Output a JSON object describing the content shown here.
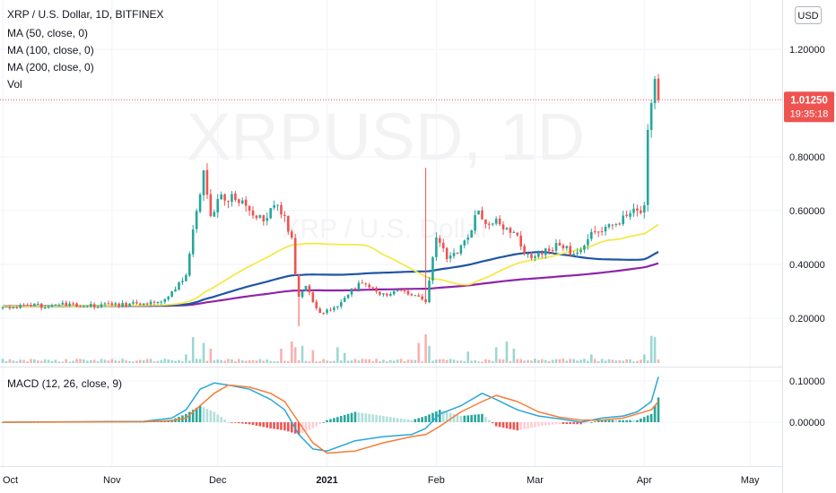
{
  "header": {
    "title": "XRP / U.S. Dollar, 1D, BITFINEX",
    "indicators": [
      "MA (50, close, 0)",
      "MA (100, close, 0)",
      "MA (200, close, 0)",
      "Vol"
    ],
    "currency": "USD",
    "watermark_main": "XRPUSD, 1D",
    "watermark_sub": "XRP / U.S. Dollar"
  },
  "price_tag": {
    "value": "1.01250",
    "time": "19:35:18",
    "color": "#ef5350"
  },
  "macd": {
    "label": "MACD (12, 26, close, 9)"
  },
  "colors": {
    "up": "#26a69a",
    "down": "#ef5350",
    "ma50": "#f5e84a",
    "ma100": "#1f55a5",
    "ma200": "#8e24aa",
    "macd_line": "#2aa7d8",
    "signal_line": "#f57c39",
    "hist_up_strong": "#26a69a",
    "hist_up_weak": "#b2dfdb",
    "hist_down_strong": "#ef5350",
    "hist_down_weak": "#ffcdd2"
  },
  "chart_data": [
    {
      "type": "candlestick",
      "title": "XRP / U.S. Dollar, 1D, BITFINEX",
      "ylim": [
        0.1,
        1.3
      ],
      "yticks": [
        "0.20000",
        "0.40000",
        "0.60000",
        "0.80000",
        "1.00000",
        "1.20000"
      ],
      "x_tick_labels": [
        "Oct",
        "Nov",
        "Dec",
        "2021",
        "Feb",
        "Mar",
        "Apr",
        "May"
      ],
      "anchors": [
        {
          "d": 0,
          "p": 0.24
        },
        {
          "d": 8,
          "p": 0.245
        },
        {
          "d": 16,
          "p": 0.25
        },
        {
          "d": 24,
          "p": 0.245
        },
        {
          "d": 31,
          "p": 0.25
        },
        {
          "d": 38,
          "p": 0.255
        },
        {
          "d": 44,
          "p": 0.26
        },
        {
          "d": 48,
          "p": 0.3
        },
        {
          "d": 52,
          "p": 0.36
        },
        {
          "d": 54,
          "p": 0.53
        },
        {
          "d": 56,
          "p": 0.66
        },
        {
          "d": 57,
          "p": 0.75
        },
        {
          "d": 59,
          "p": 0.58
        },
        {
          "d": 62,
          "p": 0.66
        },
        {
          "d": 66,
          "p": 0.64
        },
        {
          "d": 70,
          "p": 0.6
        },
        {
          "d": 74,
          "p": 0.56
        },
        {
          "d": 77,
          "p": 0.62
        },
        {
          "d": 80,
          "p": 0.58
        },
        {
          "d": 82,
          "p": 0.5
        },
        {
          "d": 83,
          "p": 0.36
        },
        {
          "d": 84,
          "p": 0.28
        },
        {
          "d": 86,
          "p": 0.32
        },
        {
          "d": 88,
          "p": 0.26
        },
        {
          "d": 90,
          "p": 0.22
        },
        {
          "d": 93,
          "p": 0.23
        },
        {
          "d": 96,
          "p": 0.26
        },
        {
          "d": 99,
          "p": 0.31
        },
        {
          "d": 102,
          "p": 0.33
        },
        {
          "d": 106,
          "p": 0.3
        },
        {
          "d": 110,
          "p": 0.29
        },
        {
          "d": 114,
          "p": 0.3
        },
        {
          "d": 118,
          "p": 0.28
        },
        {
          "d": 120,
          "p": 0.26
        },
        {
          "d": 121,
          "p": 0.34
        },
        {
          "d": 123,
          "p": 0.5
        },
        {
          "d": 126,
          "p": 0.42
        },
        {
          "d": 129,
          "p": 0.44
        },
        {
          "d": 132,
          "p": 0.5
        },
        {
          "d": 135,
          "p": 0.6
        },
        {
          "d": 137,
          "p": 0.55
        },
        {
          "d": 140,
          "p": 0.57
        },
        {
          "d": 142,
          "p": 0.53
        },
        {
          "d": 145,
          "p": 0.52
        },
        {
          "d": 148,
          "p": 0.44
        },
        {
          "d": 151,
          "p": 0.43
        },
        {
          "d": 154,
          "p": 0.46
        },
        {
          "d": 158,
          "p": 0.47
        },
        {
          "d": 162,
          "p": 0.44
        },
        {
          "d": 165,
          "p": 0.47
        },
        {
          "d": 168,
          "p": 0.52
        },
        {
          "d": 171,
          "p": 0.54
        },
        {
          "d": 174,
          "p": 0.55
        },
        {
          "d": 177,
          "p": 0.58
        },
        {
          "d": 180,
          "p": 0.6
        },
        {
          "d": 182,
          "p": 0.62
        },
        {
          "d": 183,
          "p": 0.9
        },
        {
          "d": 184,
          "p": 1.0
        },
        {
          "d": 185,
          "p": 1.09
        },
        {
          "d": 186,
          "p": 1.0125
        }
      ],
      "volume_spikes": [
        {
          "d": 52,
          "v": 0.3
        },
        {
          "d": 54,
          "v": 0.9
        },
        {
          "d": 57,
          "v": 0.7
        },
        {
          "d": 59,
          "v": 0.5
        },
        {
          "d": 79,
          "v": 0.5
        },
        {
          "d": 82,
          "v": 0.75
        },
        {
          "d": 83,
          "v": 0.55
        },
        {
          "d": 85,
          "v": 0.6
        },
        {
          "d": 88,
          "v": 0.45
        },
        {
          "d": 95,
          "v": 0.55
        },
        {
          "d": 97,
          "v": 0.35
        },
        {
          "d": 118,
          "v": 0.7
        },
        {
          "d": 120,
          "v": 1.0
        },
        {
          "d": 121,
          "v": 0.6
        },
        {
          "d": 132,
          "v": 0.4
        },
        {
          "d": 140,
          "v": 0.55
        },
        {
          "d": 143,
          "v": 0.75
        },
        {
          "d": 145,
          "v": 0.5
        },
        {
          "d": 167,
          "v": 0.3
        },
        {
          "d": 182,
          "v": 0.3
        },
        {
          "d": 184,
          "v": 0.95
        },
        {
          "d": 185,
          "v": 0.9
        }
      ],
      "volume_base": 0.1
    },
    {
      "type": "line",
      "title": "MACD (12, 26, close, 9)",
      "ylim": [
        -0.08,
        0.125
      ],
      "yticks": [
        "0.00000",
        "0.10000"
      ],
      "series": [
        {
          "name": "MACD",
          "points": [
            [
              0,
              0
            ],
            [
              40,
              0.002
            ],
            [
              48,
              0.01
            ],
            [
              52,
              0.03
            ],
            [
              56,
              0.08
            ],
            [
              60,
              0.095
            ],
            [
              64,
              0.09
            ],
            [
              70,
              0.08
            ],
            [
              76,
              0.055
            ],
            [
              80,
              0.03
            ],
            [
              84,
              -0.03
            ],
            [
              88,
              -0.065
            ],
            [
              92,
              -0.07
            ],
            [
              100,
              -0.045
            ],
            [
              108,
              -0.035
            ],
            [
              116,
              -0.03
            ],
            [
              120,
              -0.015
            ],
            [
              124,
              0.02
            ],
            [
              130,
              0.04
            ],
            [
              136,
              0.07
            ],
            [
              140,
              0.055
            ],
            [
              146,
              0.03
            ],
            [
              152,
              0.015
            ],
            [
              158,
              0.008
            ],
            [
              164,
              0.0
            ],
            [
              170,
              0.01
            ],
            [
              176,
              0.015
            ],
            [
              180,
              0.025
            ],
            [
              184,
              0.05
            ],
            [
              186,
              0.11
            ]
          ]
        },
        {
          "name": "Signal",
          "points": [
            [
              0,
              0
            ],
            [
              40,
              0.001
            ],
            [
              48,
              0.004
            ],
            [
              52,
              0.01
            ],
            [
              56,
              0.04
            ],
            [
              60,
              0.07
            ],
            [
              64,
              0.09
            ],
            [
              70,
              0.085
            ],
            [
              76,
              0.07
            ],
            [
              80,
              0.05
            ],
            [
              84,
              0.0
            ],
            [
              88,
              -0.05
            ],
            [
              92,
              -0.075
            ],
            [
              100,
              -0.07
            ],
            [
              108,
              -0.05
            ],
            [
              116,
              -0.035
            ],
            [
              120,
              -0.03
            ],
            [
              124,
              -0.01
            ],
            [
              130,
              0.025
            ],
            [
              136,
              0.05
            ],
            [
              140,
              0.065
            ],
            [
              146,
              0.05
            ],
            [
              152,
              0.025
            ],
            [
              158,
              0.012
            ],
            [
              164,
              0.005
            ],
            [
              170,
              0.005
            ],
            [
              176,
              0.01
            ],
            [
              180,
              0.02
            ],
            [
              184,
              0.03
            ],
            [
              186,
              0.05
            ]
          ]
        }
      ]
    }
  ]
}
